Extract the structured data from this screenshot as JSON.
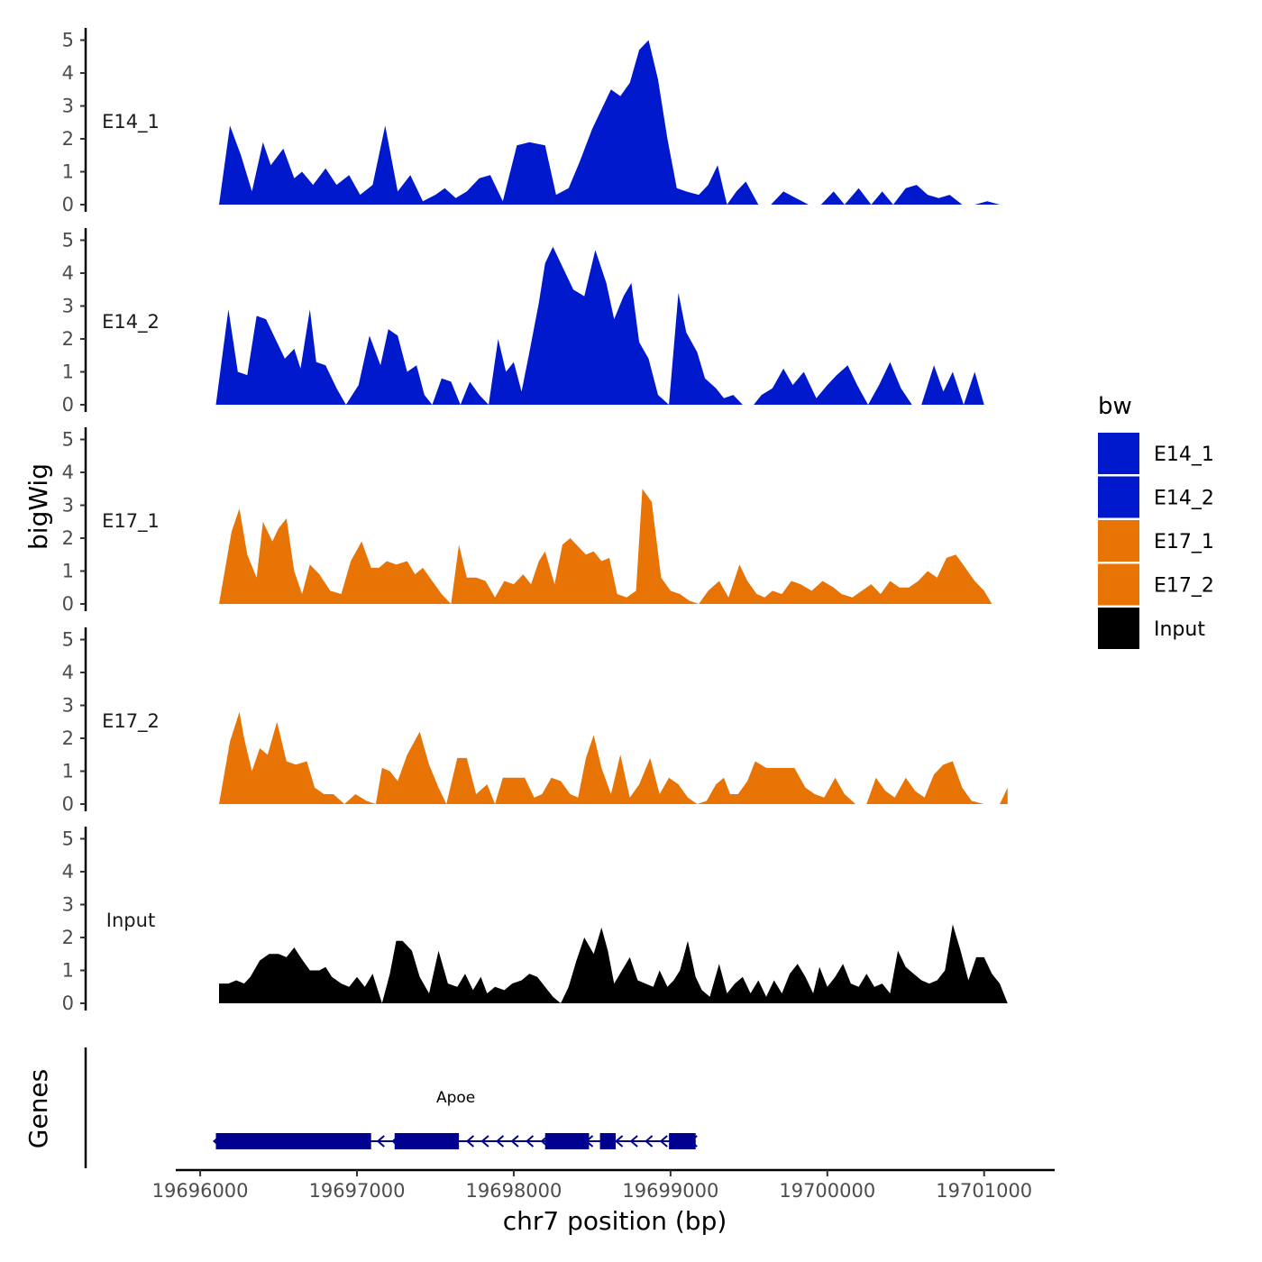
{
  "chart_data": {
    "type": "area",
    "title": "",
    "ylabel": "bigWig",
    "xlabel": "chr7 position (bp)",
    "xlim": [
      19695850,
      19701450
    ],
    "ylim": [
      0,
      5.3
    ],
    "ytick_labels": [
      "0",
      "1",
      "2",
      "3",
      "4",
      "5"
    ],
    "xtick_values": [
      19696000,
      19697000,
      19698000,
      19699000,
      19700000,
      19701000
    ],
    "xtick_labels": [
      "19696000",
      "19697000",
      "19698000",
      "19699000",
      "19700000",
      "19701000"
    ],
    "legend": {
      "title": "bw",
      "placement": "right",
      "entries": [
        {
          "label": "E14_1",
          "color": "#0019CC"
        },
        {
          "label": "E14_2",
          "color": "#0019CC"
        },
        {
          "label": "E17_1",
          "color": "#E87405"
        },
        {
          "label": "E17_2",
          "color": "#E87405"
        },
        {
          "label": "Input",
          "color": "#000000"
        }
      ]
    },
    "series": [
      {
        "name": "E14_1",
        "color": "#0019CC",
        "x": [
          19696120,
          19696190,
          19696260,
          19696330,
          19696400,
          19696450,
          19696530,
          19696600,
          19696650,
          19696720,
          19696800,
          19696870,
          19696950,
          19697020,
          19697100,
          19697180,
          19697260,
          19697340,
          19697420,
          19697500,
          19697560,
          19697630,
          19697700,
          19697780,
          19697850,
          19697930,
          19698020,
          19698100,
          19698200,
          19698270,
          19698350,
          19698420,
          19698500,
          19698560,
          19698620,
          19698680,
          19698740,
          19698800,
          19698860,
          19698920,
          19698980,
          19699040,
          19699100,
          19699180,
          19699240,
          19699300,
          19699360,
          19699420,
          19699480,
          19699560,
          19699640,
          19699720,
          19699800,
          19699880,
          19699960,
          19700040,
          19700110,
          19700200,
          19700280,
          19700350,
          19700420,
          19700500,
          19700570,
          19700640,
          19700710,
          19700780,
          19700860,
          19700940,
          19701020,
          19701100,
          19701150
        ],
        "values": [
          0,
          2.4,
          1.5,
          0.4,
          1.9,
          1.2,
          1.7,
          0.8,
          1.0,
          0.6,
          1.1,
          0.6,
          0.9,
          0.3,
          0.6,
          2.4,
          0.4,
          0.9,
          0.1,
          0.3,
          0.5,
          0.2,
          0.4,
          0.8,
          0.9,
          0.1,
          1.8,
          1.9,
          1.8,
          0.3,
          0.5,
          1.3,
          2.3,
          2.9,
          3.5,
          3.3,
          3.7,
          4.7,
          5.0,
          3.8,
          2.0,
          0.5,
          0.4,
          0.3,
          0.6,
          1.2,
          0,
          0.4,
          0.7,
          0,
          0,
          0.4,
          0.2,
          0,
          0,
          0.4,
          0,
          0.5,
          0,
          0.4,
          0,
          0.5,
          0.6,
          0.3,
          0.2,
          0.3,
          0,
          0,
          0.1,
          0,
          0
        ]
      },
      {
        "name": "E14_2",
        "color": "#0019CC",
        "x": [
          19696100,
          19696180,
          19696240,
          19696300,
          19696360,
          19696420,
          19696470,
          19696540,
          19696600,
          19696640,
          19696700,
          19696740,
          19696800,
          19696870,
          19696930,
          19697010,
          19697080,
          19697150,
          19697200,
          19697260,
          19697320,
          19697380,
          19697430,
          19697480,
          19697540,
          19697600,
          19697660,
          19697720,
          19697780,
          19697840,
          19697900,
          19697950,
          19698000,
          19698050,
          19698100,
          19698160,
          19698200,
          19698250,
          19698320,
          19698380,
          19698450,
          19698520,
          19698590,
          19698640,
          19698700,
          19698750,
          19698800,
          19698860,
          19698920,
          19698990,
          19699050,
          19699100,
          19699170,
          19699220,
          19699290,
          19699340,
          19699400,
          19699460,
          19699530,
          19699580,
          19699650,
          19699720,
          19699780,
          19699850,
          19699930,
          19700000,
          19700060,
          19700130,
          19700190,
          19700260,
          19700330,
          19700400,
          19700470,
          19700540,
          19700600,
          19700680,
          19700740,
          19700800,
          19700870,
          19700940,
          19701000,
          19701060,
          19701130
        ],
        "values": [
          0,
          2.9,
          1.0,
          0.9,
          2.7,
          2.6,
          2.1,
          1.4,
          1.7,
          1.1,
          2.9,
          1.3,
          1.2,
          0.5,
          0,
          0.6,
          2.1,
          1.2,
          2.3,
          2.1,
          1.0,
          1.2,
          0.3,
          0,
          0.8,
          0.7,
          0,
          0.7,
          0.3,
          0,
          2.0,
          1.0,
          1.3,
          0.4,
          1.6,
          3.1,
          4.3,
          4.8,
          4.1,
          3.5,
          3.3,
          4.7,
          3.7,
          2.6,
          3.3,
          3.7,
          1.9,
          1.4,
          0.3,
          0,
          3.4,
          2.2,
          1.6,
          0.8,
          0.5,
          0.2,
          0.3,
          0,
          0,
          0.3,
          0.5,
          1.1,
          0.6,
          1.0,
          0.2,
          0.6,
          0.9,
          1.2,
          0.6,
          0,
          0.6,
          1.3,
          0.5,
          0,
          0,
          1.2,
          0.4,
          1.0,
          0,
          1.0,
          0,
          0,
          0
        ]
      },
      {
        "name": "E17_1",
        "color": "#E87405",
        "x": [
          19696120,
          19696200,
          19696250,
          19696300,
          19696360,
          19696400,
          19696460,
          19696500,
          19696550,
          19696600,
          19696650,
          19696700,
          19696760,
          19696830,
          19696900,
          19696960,
          19697030,
          19697090,
          19697140,
          19697190,
          19697250,
          19697320,
          19697370,
          19697420,
          19697480,
          19697540,
          19697600,
          19697650,
          19697700,
          19697760,
          19697820,
          19697880,
          19697940,
          19698000,
          19698060,
          19698110,
          19698160,
          19698200,
          19698260,
          19698310,
          19698360,
          19698400,
          19698460,
          19698510,
          19698560,
          19698610,
          19698660,
          19698720,
          19698780,
          19698820,
          19698880,
          19698940,
          19699000,
          19699060,
          19699120,
          19699180,
          19699240,
          19699310,
          19699370,
          19699440,
          19699490,
          19699550,
          19699600,
          19699650,
          19699710,
          19699770,
          19699830,
          19699900,
          19699970,
          19700040,
          19700090,
          19700160,
          19700220,
          19700280,
          19700340,
          19700400,
          19700460,
          19700520,
          19700580,
          19700640,
          19700700,
          19700760,
          19700820,
          19700880,
          19700940,
          19701000,
          19701050,
          19701150
        ],
        "values": [
          0,
          2.2,
          2.9,
          1.5,
          0.8,
          2.5,
          1.9,
          2.3,
          2.6,
          1.0,
          0.3,
          1.2,
          0.9,
          0.4,
          0.3,
          1.3,
          1.9,
          1.1,
          1.1,
          1.3,
          1.2,
          1.3,
          0.9,
          1.1,
          0.7,
          0.3,
          0,
          1.8,
          0.8,
          0.8,
          0.7,
          0.2,
          0.7,
          0.6,
          0.9,
          0.6,
          1.3,
          1.6,
          0.6,
          1.8,
          2.0,
          1.8,
          1.5,
          1.6,
          1.3,
          1.4,
          0.3,
          0.2,
          0.4,
          3.5,
          3.1,
          0.8,
          0.4,
          0.3,
          0.1,
          0,
          0.4,
          0.7,
          0.2,
          1.2,
          0.7,
          0.3,
          0.2,
          0.4,
          0.3,
          0.7,
          0.6,
          0.4,
          0.7,
          0.5,
          0.3,
          0.2,
          0.4,
          0.6,
          0.3,
          0.7,
          0.5,
          0.5,
          0.7,
          1.0,
          0.8,
          1.4,
          1.5,
          1.1,
          0.7,
          0.4,
          0,
          0
        ]
      },
      {
        "name": "E17_2",
        "color": "#E87405",
        "x": [
          19696120,
          19696190,
          19696250,
          19696280,
          19696330,
          19696380,
          19696430,
          19696490,
          19696550,
          19696610,
          19696680,
          19696730,
          19696790,
          19696850,
          19696920,
          19696990,
          19697060,
          19697120,
          19697160,
          19697210,
          19697260,
          19697320,
          19697400,
          19697460,
          19697520,
          19697570,
          19697640,
          19697700,
          19697760,
          19697830,
          19697880,
          19697930,
          19698000,
          19698070,
          19698130,
          19698180,
          19698240,
          19698300,
          19698360,
          19698410,
          19698460,
          19698510,
          19698560,
          19698620,
          19698680,
          19698740,
          19698800,
          19698870,
          19698930,
          19698990,
          19699050,
          19699110,
          19699170,
          19699230,
          19699290,
          19699340,
          19699380,
          19699430,
          19699490,
          19699540,
          19699610,
          19699670,
          19699730,
          19699790,
          19699860,
          19699920,
          19699980,
          19700050,
          19700110,
          19700180,
          19700250,
          19700310,
          19700370,
          19700430,
          19700500,
          19700560,
          19700620,
          19700680,
          19700740,
          19700800,
          19700860,
          19700920,
          19701000,
          19701060,
          19701100,
          19701150
        ],
        "values": [
          0,
          1.9,
          2.8,
          2.0,
          1.0,
          1.7,
          1.5,
          2.5,
          1.3,
          1.2,
          1.3,
          0.5,
          0.3,
          0.3,
          0,
          0.3,
          0.1,
          0,
          1.1,
          1.0,
          0.7,
          1.5,
          2.2,
          1.2,
          0.5,
          0,
          1.4,
          1.4,
          0.3,
          0.6,
          0,
          0.8,
          0.8,
          0.8,
          0.2,
          0.3,
          0.8,
          0.7,
          0.3,
          0.2,
          1.4,
          2.1,
          1.1,
          0.3,
          1.5,
          0.2,
          0.6,
          1.4,
          0.3,
          0.8,
          0.6,
          0.2,
          0,
          0.1,
          0.6,
          0.8,
          0.3,
          0.3,
          0.7,
          1.3,
          1.1,
          1.1,
          1.1,
          1.1,
          0.5,
          0.3,
          0.2,
          0.8,
          0.3,
          0,
          0,
          0.8,
          0.4,
          0.2,
          0.8,
          0.4,
          0.2,
          0.9,
          1.2,
          1.3,
          0.5,
          0.1,
          0,
          0,
          0,
          0.5
        ]
      },
      {
        "name": "Input",
        "color": "#000000",
        "x": [
          19696120,
          19696180,
          19696230,
          19696280,
          19696320,
          19696380,
          19696440,
          19696500,
          19696550,
          19696600,
          19696640,
          19696700,
          19696760,
          19696800,
          19696840,
          19696900,
          19696950,
          19697000,
          19697050,
          19697100,
          19697160,
          19697210,
          19697250,
          19697290,
          19697350,
          19697400,
          19697460,
          19697520,
          19697580,
          19697640,
          19697690,
          19697740,
          19697790,
          19697830,
          19697880,
          19697940,
          19697990,
          19698050,
          19698100,
          19698150,
          19698200,
          19698250,
          19698300,
          19698350,
          19698400,
          19698450,
          19698510,
          19698560,
          19698600,
          19698640,
          19698690,
          19698740,
          19698790,
          19698840,
          19698890,
          19698930,
          19698980,
          19699020,
          19699060,
          19699110,
          19699160,
          19699200,
          19699250,
          19699310,
          19699360,
          19699410,
          19699460,
          19699510,
          19699560,
          19699610,
          19699660,
          19699710,
          19699760,
          19699810,
          19699860,
          19699910,
          19699950,
          19700000,
          19700050,
          19700100,
          19700150,
          19700200,
          19700250,
          19700300,
          19700350,
          19700400,
          19700450,
          19700500,
          19700550,
          19700600,
          19700650,
          19700700,
          19700750,
          19700800,
          19700850,
          19700900,
          19700950,
          19701000,
          19701050,
          19701100,
          19701150
        ],
        "values": [
          0.6,
          0.6,
          0.7,
          0.6,
          0.8,
          1.3,
          1.5,
          1.5,
          1.4,
          1.7,
          1.4,
          1.0,
          1.0,
          1.1,
          0.8,
          0.6,
          0.5,
          0.8,
          0.5,
          0.9,
          0,
          0.9,
          1.9,
          1.9,
          1.6,
          0.8,
          0.3,
          1.6,
          0.6,
          0.5,
          0.9,
          0.4,
          0.8,
          0.3,
          0.5,
          0.4,
          0.6,
          0.7,
          0.9,
          0.8,
          0.5,
          0.2,
          0,
          0.5,
          1.3,
          2.0,
          1.5,
          2.3,
          1.6,
          0.6,
          1.0,
          1.4,
          0.7,
          0.6,
          0.5,
          1.0,
          0.5,
          0.7,
          1.0,
          1.9,
          0.8,
          0.4,
          0.2,
          1.2,
          0.3,
          0.6,
          0.8,
          0.3,
          0.7,
          0.2,
          0.7,
          0.3,
          0.9,
          1.2,
          0.8,
          0.3,
          1.1,
          0.5,
          0.8,
          1.2,
          0.6,
          0.5,
          0.9,
          0.5,
          0.6,
          0.3,
          1.6,
          1.1,
          0.9,
          0.7,
          0.6,
          0.7,
          1.0,
          2.4,
          1.6,
          0.7,
          1.4,
          1.4,
          0.9,
          0.6,
          0
        ]
      }
    ],
    "genes": {
      "ylabel": "Genes",
      "name": "Apoe",
      "strand": "-",
      "color": "#000090",
      "start": 19696100,
      "end": 19699160,
      "exons": [
        {
          "start": 19696100,
          "end": 19697090
        },
        {
          "start": 19697240,
          "end": 19697650
        },
        {
          "start": 19698200,
          "end": 19698480
        },
        {
          "start": 19698550,
          "end": 19698650
        },
        {
          "start": 19698990,
          "end": 19699160
        }
      ]
    }
  }
}
